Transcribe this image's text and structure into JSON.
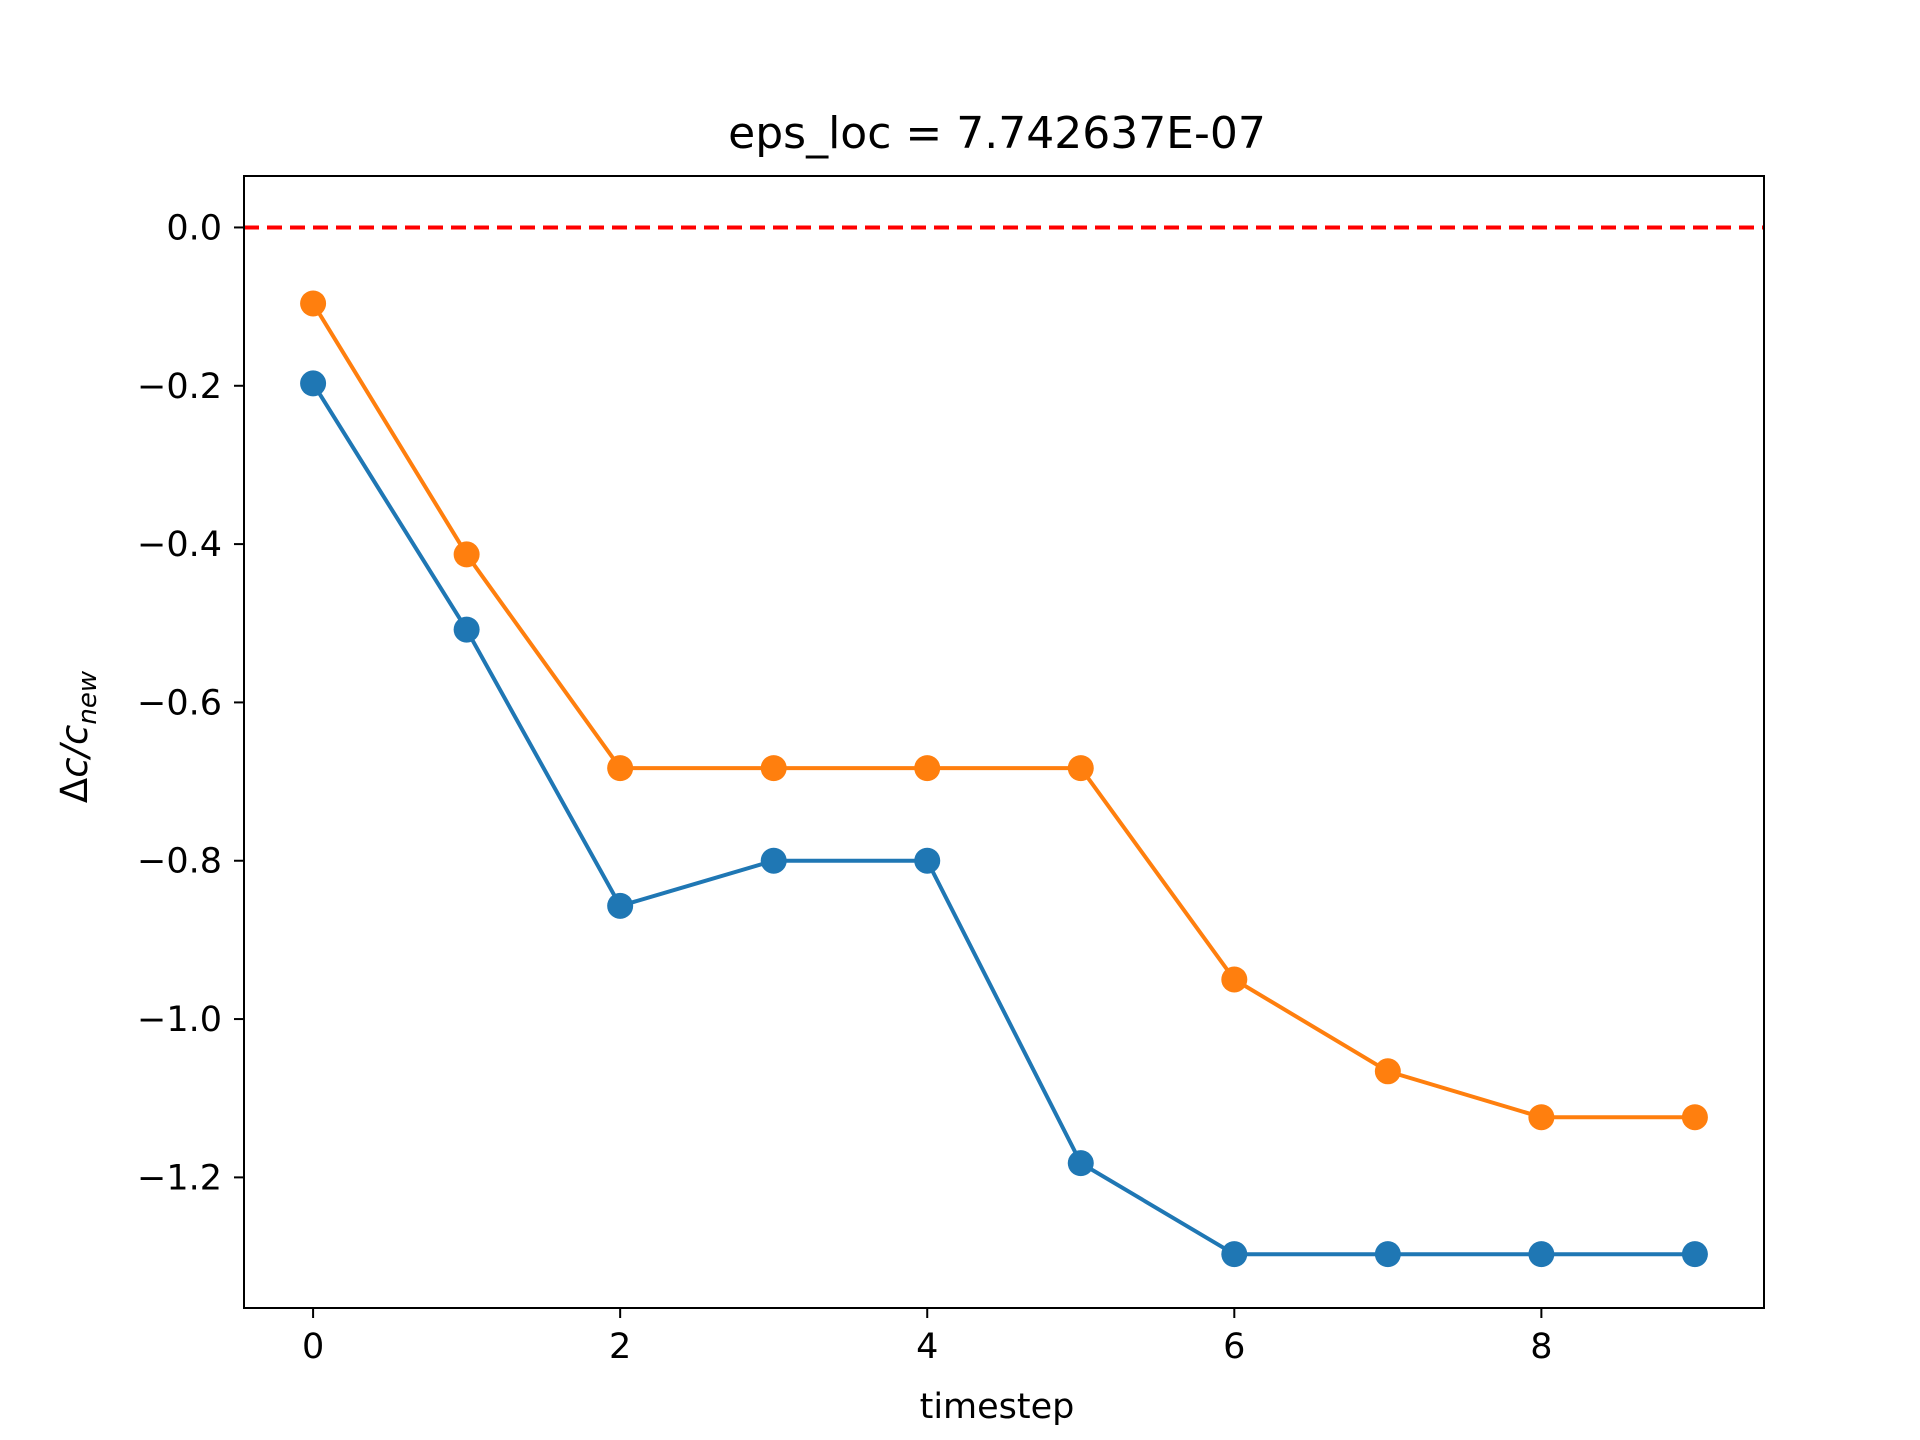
{
  "chart_data": {
    "type": "line",
    "title": "eps_loc = 7.742637E-07",
    "xlabel": "timestep",
    "ylabel": {
      "prefix": "Δ",
      "numerator": "c",
      "slash": "/",
      "denominator": "c",
      "subscript": "new"
    },
    "xlim": [
      -0.45,
      9.45
    ],
    "ylim": [
      -1.365,
      0.065
    ],
    "xticks": [
      0,
      2,
      4,
      6,
      8
    ],
    "xtick_labels": [
      "0",
      "2",
      "4",
      "6",
      "8"
    ],
    "yticks": [
      0.0,
      -0.2,
      -0.4,
      -0.6,
      -0.8,
      -1.0,
      -1.2
    ],
    "ytick_labels": [
      "0.0",
      "−0.2",
      "−0.4",
      "−0.6",
      "−0.8",
      "−1.0",
      "−1.2"
    ],
    "grid": false,
    "x": [
      0,
      1,
      2,
      3,
      4,
      5,
      6,
      7,
      8,
      9
    ],
    "series": [
      {
        "color": "#1f77b4",
        "values": [
          -0.197,
          -0.508,
          -0.857,
          -0.8,
          -0.8,
          -1.182,
          -1.297,
          -1.297,
          -1.297,
          -1.297
        ]
      },
      {
        "color": "#ff7f0e",
        "values": [
          -0.096,
          -0.413,
          -0.683,
          -0.683,
          -0.683,
          -0.683,
          -0.95,
          -1.066,
          -1.124,
          -1.124
        ]
      }
    ],
    "reference_line": {
      "y": 0.0,
      "color": "#ff0000",
      "style": "dashed"
    }
  }
}
